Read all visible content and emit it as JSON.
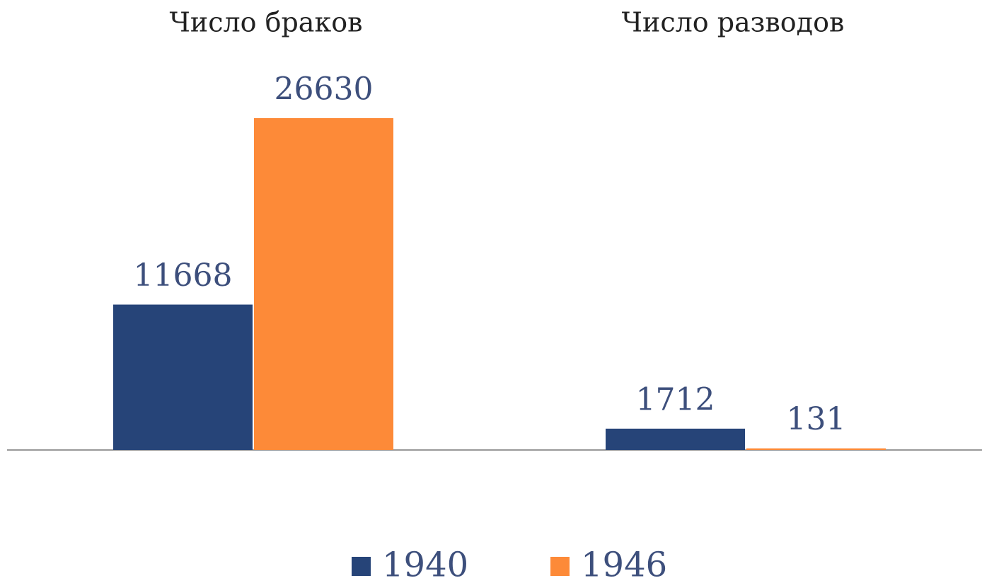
{
  "chart_data": {
    "type": "bar",
    "categories": [
      "Число браков",
      "Число разводов"
    ],
    "series": [
      {
        "name": "1940",
        "color": "#264478",
        "values": [
          11668,
          1712
        ]
      },
      {
        "name": "1946",
        "color": "#fd8a38",
        "values": [
          26630,
          131
        ]
      }
    ],
    "legend": "bottom"
  }
}
